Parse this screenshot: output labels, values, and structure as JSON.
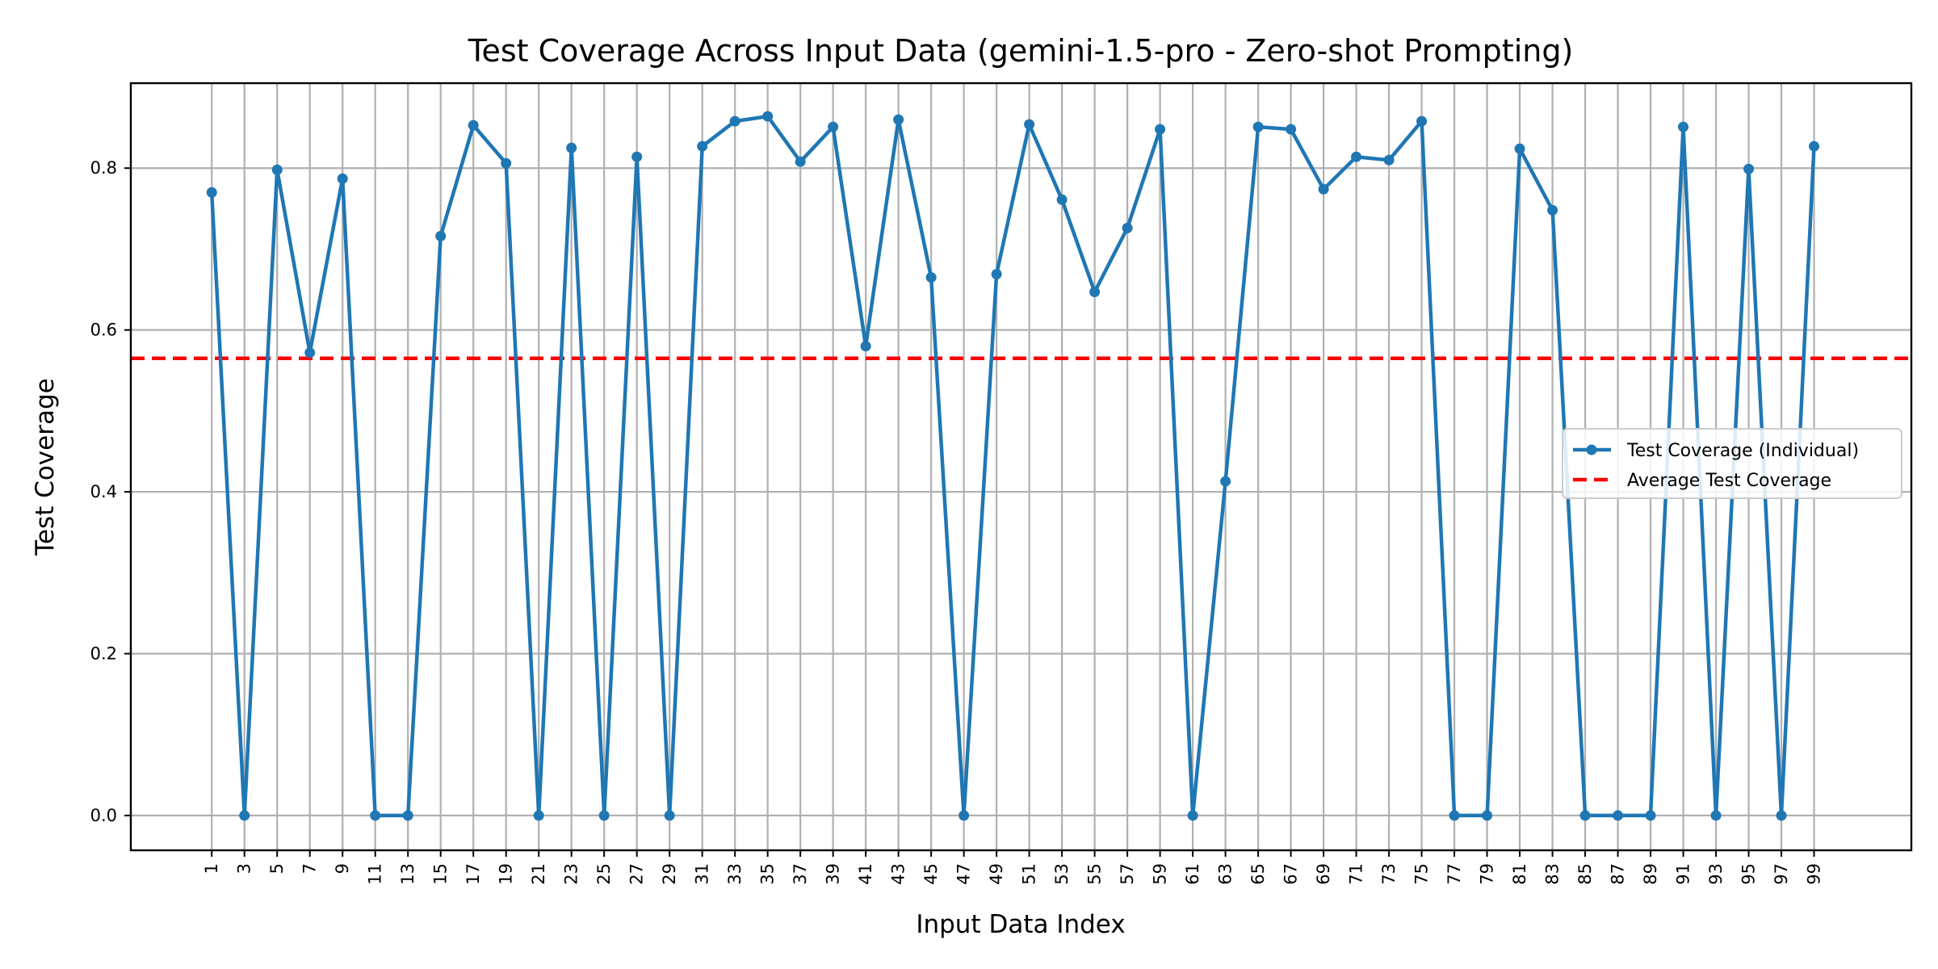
{
  "chart_data": {
    "type": "line",
    "title": "Test Coverage Across Input Data (gemini-1.5-pro - Zero-shot Prompting)",
    "xlabel": "Input Data Index",
    "ylabel": "Test Coverage",
    "x": [
      1,
      3,
      5,
      7,
      9,
      11,
      13,
      15,
      17,
      19,
      21,
      23,
      25,
      27,
      29,
      31,
      33,
      35,
      37,
      39,
      41,
      43,
      45,
      47,
      49,
      51,
      53,
      55,
      57,
      59,
      61,
      63,
      65,
      67,
      69,
      71,
      73,
      75,
      77,
      79,
      81,
      83,
      85,
      87,
      89,
      91,
      93,
      95,
      97,
      99
    ],
    "xlim": [
      -3.95,
      104.95
    ],
    "ylim": [
      -0.043,
      0.905
    ],
    "x_ticks": [
      1,
      3,
      5,
      7,
      9,
      11,
      13,
      15,
      17,
      19,
      21,
      23,
      25,
      27,
      29,
      31,
      33,
      35,
      37,
      39,
      41,
      43,
      45,
      47,
      49,
      51,
      53,
      55,
      57,
      59,
      61,
      63,
      65,
      67,
      69,
      71,
      73,
      75,
      77,
      79,
      81,
      83,
      85,
      87,
      89,
      91,
      93,
      95,
      97,
      99
    ],
    "y_ticks": [
      0.0,
      0.2,
      0.4,
      0.6,
      0.8
    ],
    "y_tick_labels": [
      "0.0",
      "0.2",
      "0.4",
      "0.6",
      "0.8"
    ],
    "grid": true,
    "legend_position": "center-right",
    "series": [
      {
        "name": "Test Coverage (Individual)",
        "color": "#1f77b4",
        "marker": "circle",
        "values": [
          0.77,
          0.0,
          0.798,
          0.572,
          0.787,
          0.0,
          0.0,
          0.716,
          0.853,
          0.806,
          0.0,
          0.825,
          0.0,
          0.814,
          0.0,
          0.827,
          0.858,
          0.864,
          0.808,
          0.851,
          0.58,
          0.86,
          0.665,
          0.0,
          0.669,
          0.854,
          0.761,
          0.647,
          0.726,
          0.848,
          0.0,
          0.413,
          0.851,
          0.848,
          0.774,
          0.814,
          0.81,
          0.858,
          0.0,
          0.0,
          0.824,
          0.748,
          0.0,
          0.0,
          0.0,
          0.851,
          0.0,
          0.799,
          0.0,
          0.827
        ]
      },
      {
        "name": "Average Test Coverage",
        "color": "#ff0000",
        "style": "dashed",
        "value": 0.565
      }
    ]
  }
}
